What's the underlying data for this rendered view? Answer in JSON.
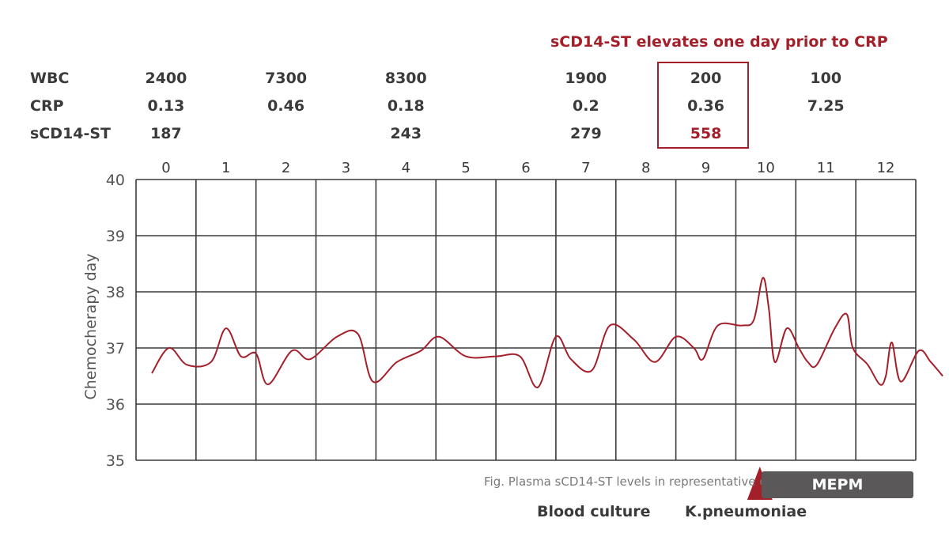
{
  "headline": "sCD14-ST elevates one day prior to CRP",
  "table": {
    "rows": [
      {
        "label": "WBC",
        "values": [
          {
            "day": 0,
            "text": "2400"
          },
          {
            "day": 2,
            "text": "7300"
          },
          {
            "day": 4,
            "text": "8300"
          },
          {
            "day": 7,
            "text": "1900"
          },
          {
            "day": 9,
            "text": "200"
          },
          {
            "day": 11,
            "text": "100"
          }
        ]
      },
      {
        "label": "CRP",
        "values": [
          {
            "day": 0,
            "text": "0.13"
          },
          {
            "day": 2,
            "text": "0.46"
          },
          {
            "day": 4,
            "text": "0.18"
          },
          {
            "day": 7,
            "text": "0.2"
          },
          {
            "day": 9,
            "text": "0.36"
          },
          {
            "day": 11,
            "text": "7.25"
          }
        ]
      },
      {
        "label": "sCD14-ST",
        "values": [
          {
            "day": 0,
            "text": "187"
          },
          {
            "day": 4,
            "text": "243"
          },
          {
            "day": 7,
            "text": "279"
          },
          {
            "day": 9,
            "text": "558",
            "highlight": true
          }
        ]
      }
    ],
    "highlight_day": 9
  },
  "chart_data": {
    "type": "line",
    "title": "",
    "xlabel": "",
    "ylabel": "Chemocherapy day",
    "x_ticks": [
      "0",
      "1",
      "2",
      "3",
      "4",
      "5",
      "6",
      "7",
      "8",
      "9",
      "10",
      "11",
      "12"
    ],
    "y_ticks": [
      "35",
      "36",
      "37",
      "38",
      "39",
      "40"
    ],
    "xlim": [
      -0.5,
      12.5
    ],
    "ylim": [
      35,
      40
    ],
    "grid": true,
    "series": [
      {
        "color": "#a31f2a",
        "x": [
          -0.25,
          0.05,
          0.35,
          0.75,
          1.0,
          1.25,
          1.5,
          1.7,
          2.1,
          2.4,
          2.85,
          3.2,
          3.45,
          3.85,
          4.25,
          4.55,
          5.0,
          5.5,
          5.9,
          6.2,
          6.5,
          6.75,
          7.1,
          7.4,
          7.8,
          8.15,
          8.5,
          8.8,
          8.95,
          9.2,
          9.6,
          9.8,
          9.95,
          10.05,
          10.15,
          10.35,
          10.55,
          10.7,
          10.85,
          11.15,
          11.35,
          11.45,
          11.7,
          11.9,
          12.0,
          12.1,
          12.25,
          12.55,
          12.75,
          12.95
        ],
        "y": [
          36.55,
          37.0,
          36.7,
          36.75,
          37.35,
          36.85,
          36.9,
          36.35,
          36.95,
          36.8,
          37.2,
          37.25,
          36.4,
          36.75,
          36.95,
          37.2,
          36.85,
          36.85,
          36.85,
          36.3,
          37.2,
          36.8,
          36.6,
          37.4,
          37.15,
          36.75,
          37.2,
          37.0,
          36.8,
          37.4,
          37.4,
          37.5,
          38.25,
          37.7,
          36.75,
          37.35,
          37.0,
          36.75,
          36.7,
          37.35,
          37.6,
          37.0,
          36.7,
          36.35,
          36.5,
          37.1,
          36.4,
          36.95,
          36.75,
          36.5
        ]
      }
    ],
    "annotations": {
      "caption": "Fig. Plasma sCD14-ST levels in representative case",
      "blood_culture": "Blood culture",
      "organism": "K.pneumoniae",
      "treatment_bar": "MEPM",
      "marker_day": 9.9
    }
  }
}
